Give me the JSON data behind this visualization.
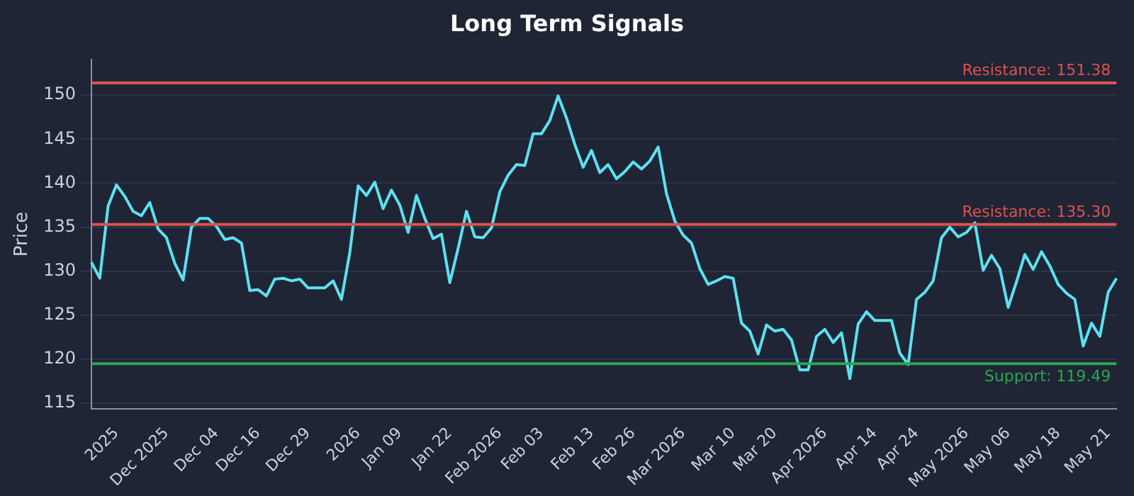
{
  "chart_data": {
    "type": "line",
    "title": "Long Term Signals",
    "ylabel": "Price",
    "categories": [
      null,
      null,
      null,
      "2025",
      null,
      null,
      null,
      null,
      null,
      "Dec 2025",
      null,
      null,
      null,
      null,
      null,
      "Dec 04",
      null,
      null,
      null,
      null,
      "Dec 16",
      null,
      null,
      null,
      null,
      null,
      "Dec 29",
      null,
      null,
      null,
      null,
      null,
      "2026",
      null,
      null,
      null,
      null,
      "Jan 09",
      null,
      null,
      null,
      null,
      null,
      "Jan 22",
      null,
      null,
      null,
      null,
      null,
      "Feb 2026",
      null,
      null,
      null,
      null,
      "Feb 03",
      null,
      null,
      null,
      null,
      null,
      "Feb 13",
      null,
      null,
      null,
      null,
      "Feb 26",
      null,
      null,
      null,
      null,
      null,
      "Mar 2026",
      null,
      null,
      null,
      null,
      null,
      "Mar 10",
      null,
      null,
      null,
      null,
      "Mar 20",
      null,
      null,
      null,
      null,
      null,
      "Apr 2026",
      null,
      null,
      null,
      null,
      null,
      "Apr 14",
      null,
      null,
      null,
      null,
      "Apr 24",
      null,
      null,
      null,
      null,
      null,
      "May 2026",
      null,
      null,
      null,
      null,
      "May 06",
      null,
      null,
      null,
      null,
      null,
      "May 18",
      null,
      null,
      null,
      null,
      null,
      "May 21",
      null
    ],
    "series": [
      {
        "color": "#5ce1f0",
        "values": [
          131.0,
          129.2,
          137.4,
          139.8,
          138.5,
          136.8,
          136.3,
          137.8,
          134.8,
          133.8,
          130.9,
          129.0,
          135.0,
          136.0,
          136.0,
          135.1,
          133.6,
          133.8,
          133.2,
          127.8,
          127.9,
          127.2,
          129.1,
          129.2,
          128.9,
          129.1,
          128.1,
          128.1,
          128.1,
          128.9,
          126.8,
          132.1,
          139.7,
          138.6,
          140.1,
          137.1,
          139.2,
          137.5,
          134.4,
          138.6,
          136.0,
          133.7,
          134.2,
          128.7,
          132.6,
          136.8,
          133.9,
          133.8,
          134.9,
          139.0,
          140.9,
          142.1,
          142.0,
          145.6,
          145.6,
          147.1,
          149.9,
          147.4,
          144.4,
          141.8,
          143.7,
          141.2,
          142.1,
          140.5,
          141.3,
          142.4,
          141.6,
          142.5,
          144.1,
          138.8,
          135.7,
          134.1,
          133.2,
          130.3,
          128.5,
          128.9,
          129.4,
          129.2,
          124.1,
          123.2,
          120.6,
          123.9,
          123.2,
          123.4,
          122.2,
          118.8,
          118.8,
          122.6,
          123.4,
          121.9,
          123.0,
          117.8,
          124.0,
          125.4,
          124.4,
          124.4,
          124.4,
          120.7,
          119.4,
          126.8,
          127.6,
          128.9,
          133.8,
          135.0,
          133.9,
          134.4,
          135.5,
          130.1,
          131.8,
          130.3,
          125.9,
          128.8,
          131.9,
          130.2,
          132.2,
          130.6,
          128.5,
          127.5,
          126.8,
          121.5,
          124.1,
          122.6,
          127.6,
          129.2
        ]
      }
    ],
    "ylim": [
      114.4,
      154
    ],
    "yticks": [
      115,
      120,
      125,
      130,
      135,
      140,
      145,
      150
    ],
    "grid": "y",
    "marker": "none",
    "line_style": "solid",
    "ref_lines": [
      {
        "axis": "y",
        "value": 151.38,
        "label": "Resistance: 151.38",
        "color": "#d9534f"
      },
      {
        "axis": "y",
        "value": 135.3,
        "label": "Resistance: 135.30",
        "color": "#d9534f"
      },
      {
        "axis": "y",
        "value": 119.49,
        "label": "Support: 119.49",
        "color": "#2ea44f"
      }
    ]
  }
}
